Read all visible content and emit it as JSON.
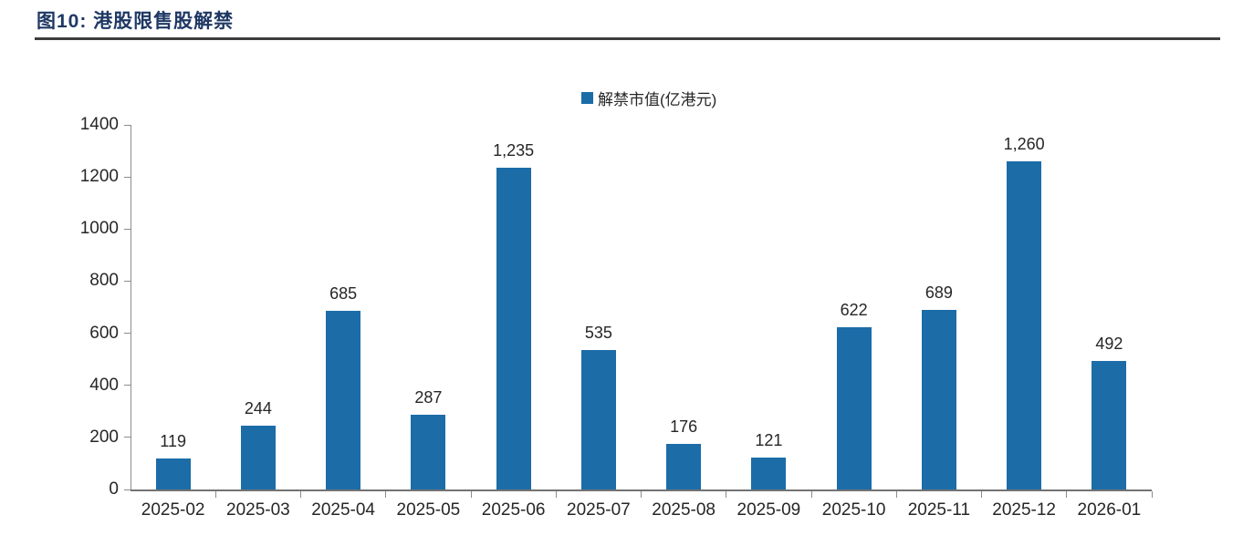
{
  "figure": {
    "title": "图10: 港股限售股解禁"
  },
  "chart_data": {
    "type": "bar",
    "title": "图10: 港股限售股解禁",
    "legend": [
      {
        "label": "解禁市值(亿港元)",
        "color": "#1C6CA8"
      }
    ],
    "legend_position": "top-center",
    "categories": [
      "2025-02",
      "2025-03",
      "2025-04",
      "2025-05",
      "2025-06",
      "2025-07",
      "2025-08",
      "2025-09",
      "2025-10",
      "2025-11",
      "2025-12",
      "2026-01"
    ],
    "series": [
      {
        "name": "解禁市值(亿港元)",
        "values": [
          119,
          244,
          685,
          287,
          1235,
          535,
          176,
          121,
          622,
          689,
          1260,
          492
        ]
      }
    ],
    "value_labels": [
      "119",
      "244",
      "685",
      "287",
      "1,235",
      "535",
      "176",
      "121",
      "622",
      "689",
      "1,260",
      "492"
    ],
    "xlabel": "",
    "ylabel": "",
    "ylim": [
      0,
      1400
    ],
    "yticks": [
      0,
      200,
      400,
      600,
      800,
      1000,
      1200,
      1400
    ],
    "grid": false,
    "bar_color": "#1C6CA8",
    "title_color": "#1F3864",
    "text_color": "#262626",
    "axis_color": "#8c8c8c"
  }
}
